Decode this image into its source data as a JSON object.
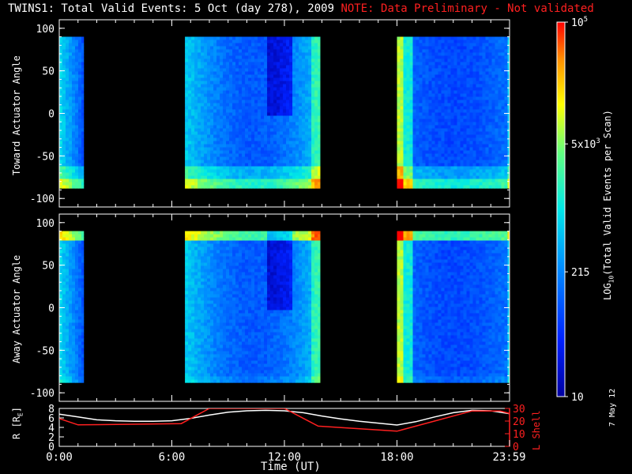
{
  "header": {
    "title": "TWINS1: Total Valid Events:  5 Oct (day 278), 2009",
    "note": "NOTE: Data Preliminary - Not validated"
  },
  "footer": {
    "date_stamp": "7 May 12"
  },
  "panels": {
    "toward_label": "Toward Actuator Angle",
    "away_label": "Away Actuator Angle",
    "ephem_left_label": "R [R",
    "ephem_left_sub": "E",
    "ephem_left_close": "]",
    "ephem_right_label": "L Shell",
    "x_title": "Time (UT)"
  },
  "colorbar": {
    "label_pre": "LOG",
    "label_sub": "10",
    "label_post": "(Total Valid  Events per Scan)",
    "ticks": [
      {
        "base": "10",
        "exp": "5",
        "value": 100000
      },
      {
        "base": "5x10",
        "exp": "3",
        "value": 5000
      },
      {
        "base": "215",
        "exp": "",
        "value": 215
      },
      {
        "base": "10",
        "exp": "",
        "value": 10
      }
    ],
    "range": [
      10,
      100000
    ],
    "scale": "log"
  },
  "chart_data": [
    {
      "type": "heatmap",
      "name_panel": "toward",
      "xlabel": "",
      "ylabel": "Toward Actuator Angle",
      "xlim": [
        0,
        24
      ],
      "ylim": [
        -110,
        110
      ],
      "yticks": [
        -100,
        -50,
        0,
        50,
        100
      ],
      "xticks": [
        0,
        6,
        12,
        18,
        23.98
      ],
      "data_segments_hours": [
        [
          0.0,
          1.3
        ],
        [
          6.7,
          13.9
        ],
        [
          18.0,
          24.0
        ]
      ],
      "angle_range": [
        -88,
        90
      ]
    },
    {
      "type": "heatmap",
      "name_panel": "away",
      "xlabel": "",
      "ylabel": "Away Actuator Angle",
      "xlim": [
        0,
        24
      ],
      "ylim": [
        -110,
        110
      ],
      "yticks": [
        -100,
        -50,
        0,
        50,
        100
      ],
      "xticks": [
        0,
        6,
        12,
        18,
        23.98
      ],
      "data_segments_hours": [
        [
          0.0,
          1.3
        ],
        [
          6.7,
          13.9
        ],
        [
          18.0,
          24.0
        ]
      ],
      "angle_range": [
        -88,
        90
      ]
    },
    {
      "type": "line",
      "xlabel": "Time (UT)",
      "xlim": [
        0,
        24
      ],
      "xtick_labels": [
        "0:00",
        "6:00",
        "12:00",
        "18:00",
        "23:59"
      ],
      "xticks": [
        0,
        6,
        12,
        18,
        23.98
      ],
      "left_axis": {
        "label": "R [RE]",
        "ylim": [
          0,
          8
        ],
        "ticks": [
          0,
          2,
          4,
          6,
          8
        ]
      },
      "right_axis": {
        "label": "L Shell",
        "ylim": [
          0,
          30
        ],
        "ticks": [
          0,
          10,
          20,
          30
        ]
      },
      "series": [
        {
          "axis": "left",
          "color": "#ffffff",
          "x": [
            0,
            1,
            2,
            3,
            4,
            5,
            6,
            7,
            8,
            9,
            10,
            11,
            12,
            13,
            14,
            15,
            16,
            17,
            18,
            19,
            20,
            21,
            22,
            23,
            24
          ],
          "y": [
            6.8,
            6.2,
            5.6,
            5.4,
            5.3,
            5.3,
            5.4,
            5.9,
            6.6,
            7.2,
            7.5,
            7.6,
            7.5,
            7.1,
            6.4,
            5.8,
            5.3,
            4.9,
            4.5,
            5.2,
            6.2,
            7.1,
            7.6,
            7.5,
            6.9
          ]
        },
        {
          "axis": "right",
          "color": "#ff2020",
          "x": [
            0,
            1,
            6.5,
            8,
            12,
            13.8,
            18,
            20,
            22,
            23.5,
            24
          ],
          "y": [
            22,
            17,
            18,
            30,
            30,
            16,
            12,
            20,
            28,
            28,
            26
          ]
        }
      ]
    }
  ]
}
